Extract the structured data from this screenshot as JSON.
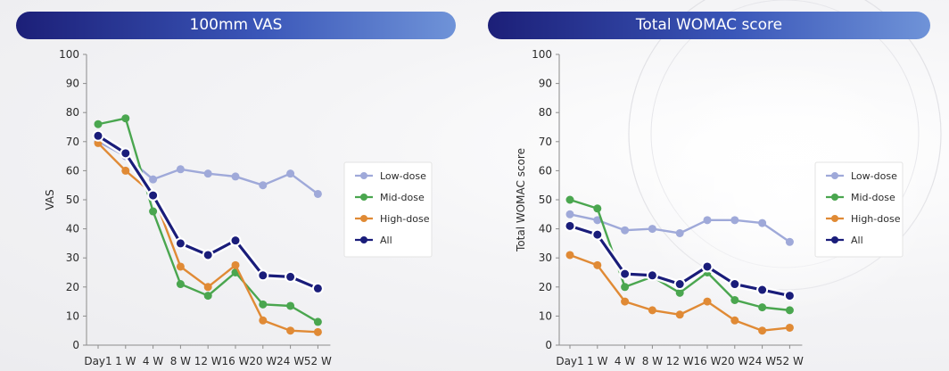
{
  "colors": {
    "low": "#9fa9d9",
    "mid": "#4aa64f",
    "high": "#e08a35",
    "all": "#1a1d7a",
    "axis": "#8c8c8c",
    "text": "#2b2b2b"
  },
  "chart_data": [
    {
      "type": "line",
      "title": "100mm VAS",
      "xlabel": "",
      "ylabel": "VAS",
      "ylim": [
        0,
        100
      ],
      "yticks": [
        0,
        10,
        20,
        30,
        40,
        50,
        60,
        70,
        80,
        90,
        100
      ],
      "categories": [
        "Day1",
        "1 W",
        "4 W",
        "8 W",
        "12 W",
        "16 W",
        "20 W",
        "24 W",
        "52 W"
      ],
      "legend_position": "right",
      "series": [
        {
          "key": "low",
          "name": "Low-dose",
          "values": [
            70,
            65,
            57,
            60.5,
            59,
            58,
            55,
            59,
            52
          ]
        },
        {
          "key": "mid",
          "name": "Mid-dose",
          "values": [
            76,
            78,
            46,
            21,
            17,
            25,
            14,
            13.5,
            8
          ]
        },
        {
          "key": "high",
          "name": "High-dose",
          "values": [
            69.5,
            60,
            52,
            27,
            20,
            27.5,
            8.5,
            5,
            4.5
          ]
        },
        {
          "key": "all",
          "name": "All",
          "values": [
            72,
            66,
            51.5,
            35,
            31,
            36,
            24,
            23.5,
            19.5
          ]
        }
      ]
    },
    {
      "type": "line",
      "title": "Total WOMAC score",
      "xlabel": "",
      "ylabel": "Total WOMAC score",
      "ylim": [
        0,
        100
      ],
      "yticks": [
        0,
        10,
        20,
        30,
        40,
        50,
        60,
        70,
        80,
        90,
        100
      ],
      "categories": [
        "Day1",
        "1 W",
        "4 W",
        "8 W",
        "12 W",
        "16 W",
        "20 W",
        "24 W",
        "52 W"
      ],
      "legend_position": "right",
      "series": [
        {
          "key": "low",
          "name": "Low-dose",
          "values": [
            45,
            43,
            39.5,
            40,
            38.5,
            43,
            43,
            42,
            35.5
          ]
        },
        {
          "key": "mid",
          "name": "Mid-dose",
          "values": [
            50,
            47,
            20,
            23.5,
            18,
            25,
            15.5,
            13,
            12
          ]
        },
        {
          "key": "high",
          "name": "High-dose",
          "values": [
            31,
            27.5,
            15,
            12,
            10.5,
            15,
            8.5,
            5,
            6
          ]
        },
        {
          "key": "all",
          "name": "All",
          "values": [
            41,
            38,
            24.5,
            24,
            21,
            27,
            21,
            19,
            17
          ]
        }
      ]
    }
  ]
}
